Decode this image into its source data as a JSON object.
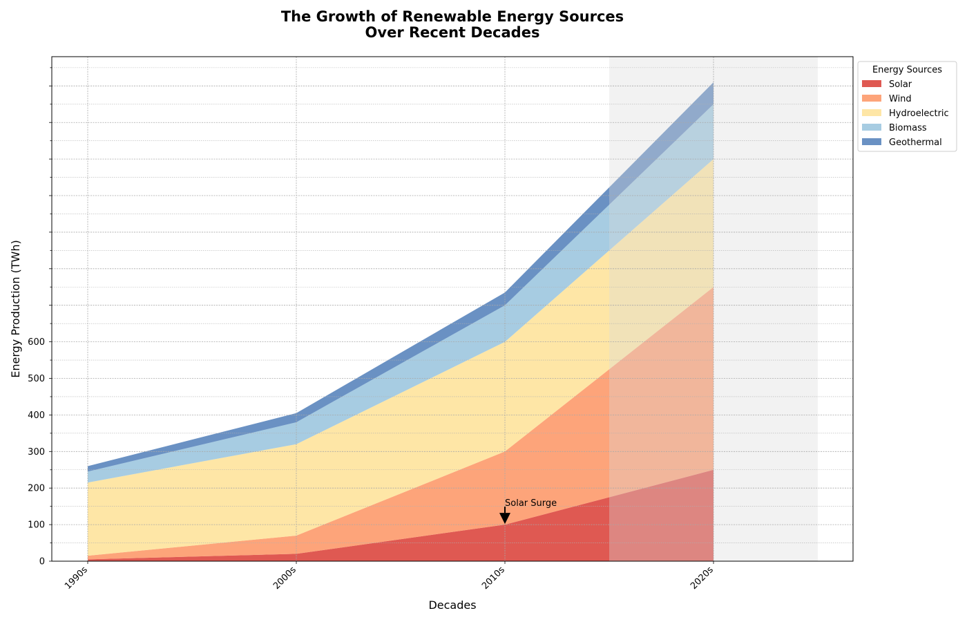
{
  "chart_data": {
    "type": "area",
    "stacked": true,
    "title": [
      "The Growth of Renewable Energy Sources",
      "Over Recent Decades"
    ],
    "xlabel": "Decades",
    "ylabel": "Energy Production (TWh)",
    "categories": [
      "1990s",
      "2000s",
      "2010s",
      "2020s"
    ],
    "yticks": [
      0,
      100,
      200,
      300,
      400,
      500,
      600
    ],
    "ylim": [
      0,
      1380
    ],
    "grid": true,
    "shaded_region": {
      "from": "2010s+0.5",
      "to": "2020s+0.5",
      "color": "#d9d9d9"
    },
    "series": [
      {
        "name": "Solar",
        "values": [
          5,
          20,
          100,
          250
        ],
        "color": "#d73027"
      },
      {
        "name": "Wind",
        "values": [
          10,
          50,
          200,
          500
        ],
        "color": "#fc8d59"
      },
      {
        "name": "Hydroelectric",
        "values": [
          200,
          250,
          300,
          350
        ],
        "color": "#fee090"
      },
      {
        "name": "Biomass",
        "values": [
          30,
          60,
          100,
          150
        ],
        "color": "#91bfdb"
      },
      {
        "name": "Geothermal",
        "values": [
          15,
          25,
          35,
          60
        ],
        "color": "#4575b4"
      }
    ],
    "annotations": [
      {
        "text": "Solar Surge",
        "x": "2010s",
        "y": 100
      }
    ],
    "legend": {
      "title": "Energy Sources",
      "placement": "outside-top-right"
    }
  }
}
